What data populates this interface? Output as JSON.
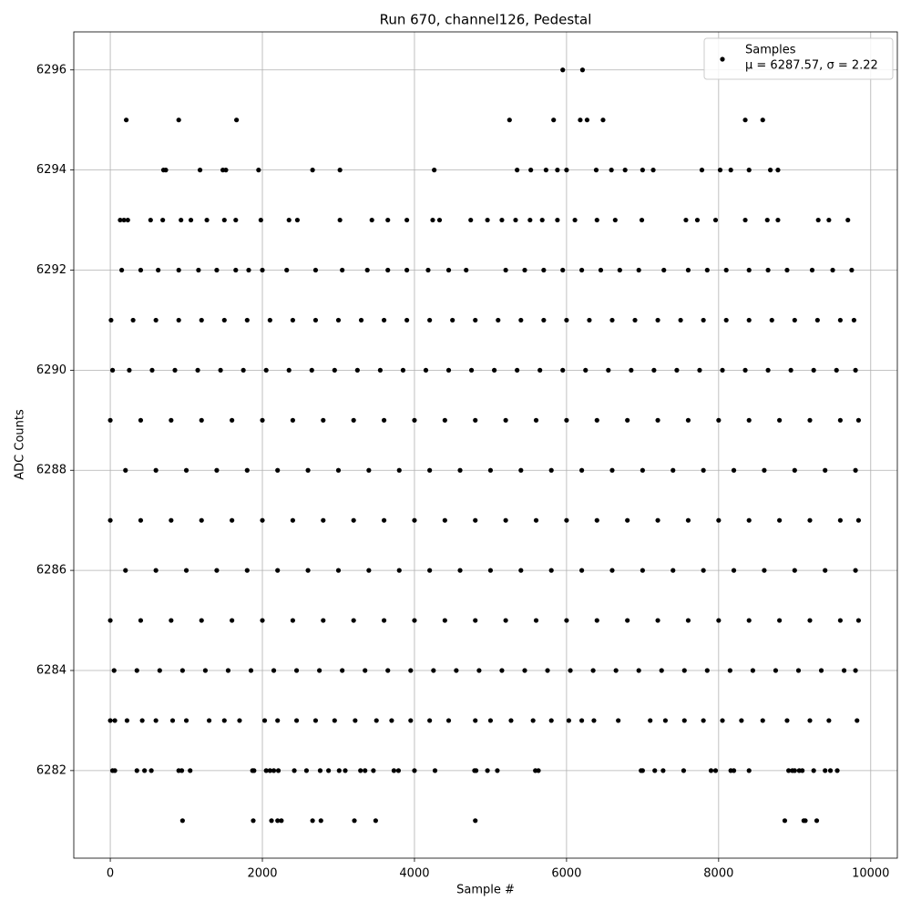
{
  "chart_data": {
    "type": "scatter",
    "title": "Run 670, channel126, Pedestal",
    "x_label": "Sample #",
    "y_label": "ADC Counts",
    "xlim": [
      -480,
      10350
    ],
    "ylim": [
      6280.25,
      6296.76
    ],
    "xticks": [
      0,
      2000,
      4000,
      6000,
      8000,
      10000
    ],
    "yticks": [
      6282,
      6284,
      6286,
      6288,
      6290,
      6292,
      6294,
      6296
    ],
    "grid": true,
    "legend": "upper right",
    "legend_note": "μ = 6287.57, σ = 2.22",
    "series": [
      {
        "name": "Samples",
        "color": "#000000",
        "x": [
          5950,
          6210,
          210,
          900,
          1660,
          5250,
          5830,
          6180,
          6270,
          6480,
          8350,
          8580,
          700,
          730,
          1180,
          1480,
          1520,
          1950,
          2660,
          3020,
          4260,
          5350,
          5530,
          5730,
          5880,
          6000,
          6390,
          6590,
          6770,
          7000,
          7140,
          7780,
          8020,
          8160,
          8400,
          8680,
          8780,
          130,
          180,
          230,
          530,
          690,
          930,
          1060,
          1270,
          1500,
          1650,
          1980,
          2350,
          2460,
          3020,
          3440,
          3650,
          3900,
          4240,
          4330,
          4740,
          4960,
          5150,
          5330,
          5520,
          5680,
          5880,
          6110,
          6400,
          6640,
          6990,
          7570,
          7720,
          7960,
          8350,
          8640,
          8780,
          9310,
          9450,
          9700,
          150,
          400,
          630,
          900,
          1160,
          1400,
          1650,
          1820,
          2000,
          2320,
          2700,
          3050,
          3380,
          3650,
          3900,
          4180,
          4450,
          4680,
          5200,
          5450,
          5700,
          5950,
          6200,
          6450,
          6700,
          6950,
          7280,
          7600,
          7850,
          8100,
          8400,
          8650,
          8900,
          9230,
          9500,
          9750,
          10,
          300,
          600,
          900,
          1200,
          1500,
          1800,
          2100,
          2400,
          2700,
          3000,
          3300,
          3600,
          3900,
          4200,
          4500,
          4800,
          5100,
          5400,
          5700,
          6000,
          6300,
          6600,
          6900,
          7200,
          7500,
          7800,
          8100,
          8400,
          8700,
          9000,
          9300,
          9600,
          9780,
          30,
          250,
          550,
          850,
          1150,
          1450,
          1750,
          2050,
          2350,
          2650,
          2950,
          3250,
          3550,
          3850,
          4150,
          4450,
          4750,
          5050,
          5350,
          5650,
          5950,
          6250,
          6550,
          6850,
          7150,
          7450,
          7750,
          8050,
          8350,
          8650,
          8950,
          9250,
          9550,
          9800,
          0,
          400,
          800,
          1200,
          1600,
          2000,
          2400,
          2800,
          3200,
          3600,
          4000,
          4400,
          4800,
          5200,
          5600,
          6000,
          6400,
          6800,
          7200,
          7600,
          8000,
          8400,
          8800,
          9200,
          9600,
          9840,
          200,
          600,
          1000,
          1400,
          1800,
          2200,
          2600,
          3000,
          3400,
          3800,
          4200,
          4600,
          5000,
          5400,
          5800,
          6200,
          6600,
          7000,
          7400,
          7800,
          8200,
          8600,
          9000,
          9400,
          9800,
          0,
          400,
          800,
          1200,
          1600,
          2000,
          2400,
          2800,
          3200,
          3600,
          4000,
          4400,
          4800,
          5200,
          5600,
          6000,
          6400,
          6800,
          7200,
          7600,
          8000,
          8400,
          8800,
          9200,
          9600,
          9840,
          200,
          600,
          1000,
          1400,
          1800,
          2200,
          2600,
          3000,
          3400,
          3800,
          4200,
          4600,
          5000,
          5400,
          5800,
          6200,
          6600,
          7000,
          7400,
          7800,
          8200,
          8600,
          9000,
          9400,
          9800,
          0,
          400,
          800,
          1200,
          1600,
          2000,
          2400,
          2800,
          3200,
          3600,
          4000,
          4400,
          4800,
          5200,
          5600,
          6000,
          6400,
          6800,
          7200,
          7600,
          8000,
          8400,
          8800,
          9200,
          9600,
          9840,
          50,
          350,
          650,
          950,
          1250,
          1550,
          1850,
          2150,
          2450,
          2750,
          3050,
          3350,
          3650,
          3950,
          4250,
          4550,
          4850,
          5150,
          5450,
          5750,
          6050,
          6350,
          6650,
          6950,
          7250,
          7550,
          7850,
          8150,
          8450,
          8750,
          9050,
          9350,
          9650,
          9800,
          0,
          60,
          220,
          420,
          600,
          820,
          1000,
          1300,
          1500,
          1700,
          2030,
          2200,
          2450,
          2700,
          2950,
          3220,
          3500,
          3700,
          3950,
          4200,
          4450,
          4800,
          5000,
          5270,
          5560,
          5800,
          6030,
          6200,
          6360,
          6680,
          7100,
          7300,
          7550,
          7800,
          8050,
          8300,
          8580,
          8900,
          9200,
          9450,
          9820,
          30,
          60,
          350,
          450,
          540,
          900,
          940,
          1050,
          1870,
          1890,
          2050,
          2100,
          2150,
          2210,
          2420,
          2580,
          2760,
          2870,
          3010,
          3090,
          3290,
          3350,
          3460,
          3730,
          3790,
          4000,
          4270,
          4790,
          4810,
          4960,
          5090,
          5590,
          5630,
          6980,
          7000,
          7160,
          7270,
          7540,
          7900,
          7960,
          8160,
          8200,
          8400,
          8920,
          8970,
          9000,
          9060,
          9100,
          9250,
          9400,
          9470,
          9560,
          950,
          1880,
          2120,
          2200,
          2250,
          2660,
          2770,
          3210,
          3490,
          4800,
          8870,
          9120,
          9140,
          9290
        ],
        "values": [
          6296,
          6296,
          6295,
          6295,
          6295,
          6295,
          6295,
          6295,
          6295,
          6295,
          6295,
          6295,
          6294,
          6294,
          6294,
          6294,
          6294,
          6294,
          6294,
          6294,
          6294,
          6294,
          6294,
          6294,
          6294,
          6294,
          6294,
          6294,
          6294,
          6294,
          6294,
          6294,
          6294,
          6294,
          6294,
          6294,
          6294,
          6293,
          6293,
          6293,
          6293,
          6293,
          6293,
          6293,
          6293,
          6293,
          6293,
          6293,
          6293,
          6293,
          6293,
          6293,
          6293,
          6293,
          6293,
          6293,
          6293,
          6293,
          6293,
          6293,
          6293,
          6293,
          6293,
          6293,
          6293,
          6293,
          6293,
          6293,
          6293,
          6293,
          6293,
          6293,
          6293,
          6293,
          6293,
          6293,
          6292,
          6292,
          6292,
          6292,
          6292,
          6292,
          6292,
          6292,
          6292,
          6292,
          6292,
          6292,
          6292,
          6292,
          6292,
          6292,
          6292,
          6292,
          6292,
          6292,
          6292,
          6292,
          6292,
          6292,
          6292,
          6292,
          6292,
          6292,
          6292,
          6292,
          6292,
          6292,
          6292,
          6292,
          6292,
          6292,
          6291,
          6291,
          6291,
          6291,
          6291,
          6291,
          6291,
          6291,
          6291,
          6291,
          6291,
          6291,
          6291,
          6291,
          6291,
          6291,
          6291,
          6291,
          6291,
          6291,
          6291,
          6291,
          6291,
          6291,
          6291,
          6291,
          6291,
          6291,
          6291,
          6291,
          6291,
          6291,
          6291,
          6291,
          6290,
          6290,
          6290,
          6290,
          6290,
          6290,
          6290,
          6290,
          6290,
          6290,
          6290,
          6290,
          6290,
          6290,
          6290,
          6290,
          6290,
          6290,
          6290,
          6290,
          6290,
          6290,
          6290,
          6290,
          6290,
          6290,
          6290,
          6290,
          6290,
          6290,
          6290,
          6290,
          6290,
          6290,
          6289,
          6289,
          6289,
          6289,
          6289,
          6289,
          6289,
          6289,
          6289,
          6289,
          6289,
          6289,
          6289,
          6289,
          6289,
          6289,
          6289,
          6289,
          6289,
          6289,
          6289,
          6289,
          6289,
          6289,
          6289,
          6289,
          6288,
          6288,
          6288,
          6288,
          6288,
          6288,
          6288,
          6288,
          6288,
          6288,
          6288,
          6288,
          6288,
          6288,
          6288,
          6288,
          6288,
          6288,
          6288,
          6288,
          6288,
          6288,
          6288,
          6288,
          6288,
          6287,
          6287,
          6287,
          6287,
          6287,
          6287,
          6287,
          6287,
          6287,
          6287,
          6287,
          6287,
          6287,
          6287,
          6287,
          6287,
          6287,
          6287,
          6287,
          6287,
          6287,
          6287,
          6287,
          6287,
          6287,
          6287,
          6286,
          6286,
          6286,
          6286,
          6286,
          6286,
          6286,
          6286,
          6286,
          6286,
          6286,
          6286,
          6286,
          6286,
          6286,
          6286,
          6286,
          6286,
          6286,
          6286,
          6286,
          6286,
          6286,
          6286,
          6286,
          6285,
          6285,
          6285,
          6285,
          6285,
          6285,
          6285,
          6285,
          6285,
          6285,
          6285,
          6285,
          6285,
          6285,
          6285,
          6285,
          6285,
          6285,
          6285,
          6285,
          6285,
          6285,
          6285,
          6285,
          6285,
          6285,
          6284,
          6284,
          6284,
          6284,
          6284,
          6284,
          6284,
          6284,
          6284,
          6284,
          6284,
          6284,
          6284,
          6284,
          6284,
          6284,
          6284,
          6284,
          6284,
          6284,
          6284,
          6284,
          6284,
          6284,
          6284,
          6284,
          6284,
          6284,
          6284,
          6284,
          6284,
          6284,
          6284,
          6284,
          6283,
          6283,
          6283,
          6283,
          6283,
          6283,
          6283,
          6283,
          6283,
          6283,
          6283,
          6283,
          6283,
          6283,
          6283,
          6283,
          6283,
          6283,
          6283,
          6283,
          6283,
          6283,
          6283,
          6283,
          6283,
          6283,
          6283,
          6283,
          6283,
          6283,
          6283,
          6283,
          6283,
          6283,
          6283,
          6283,
          6283,
          6283,
          6283,
          6283,
          6283,
          6282,
          6282,
          6282,
          6282,
          6282,
          6282,
          6282,
          6282,
          6282,
          6282,
          6282,
          6282,
          6282,
          6282,
          6282,
          6282,
          6282,
          6282,
          6282,
          6282,
          6282,
          6282,
          6282,
          6282,
          6282,
          6282,
          6282,
          6282,
          6282,
          6282,
          6282,
          6282,
          6282,
          6282,
          6282,
          6282,
          6282,
          6282,
          6282,
          6282,
          6282,
          6282,
          6282,
          6282,
          6282,
          6282,
          6282,
          6282,
          6282,
          6282,
          6282,
          6282,
          6281,
          6281,
          6281,
          6281,
          6281,
          6281,
          6281,
          6281,
          6281,
          6281,
          6281,
          6281,
          6281,
          6281
        ]
      }
    ]
  }
}
